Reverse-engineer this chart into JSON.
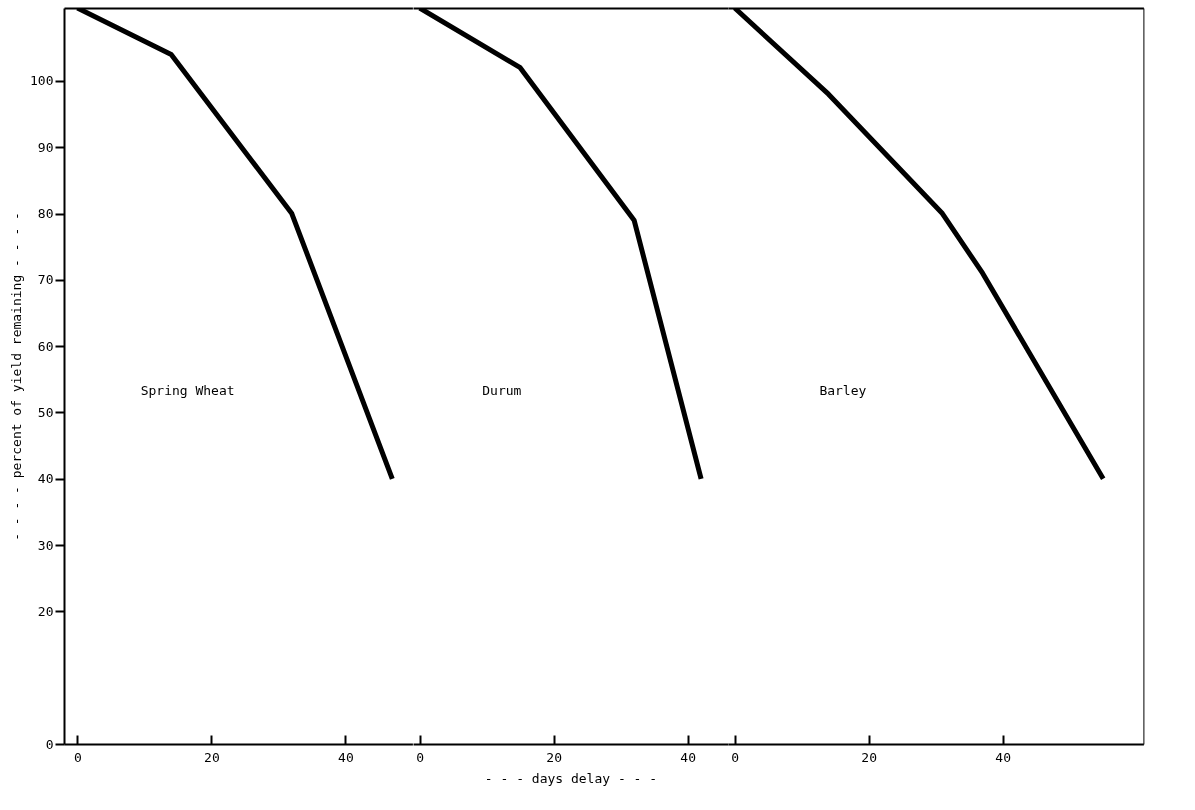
{
  "chart_data": [
    {
      "type": "line",
      "ylabel": "- - - - percent of yield remaining - - - -",
      "xlim": [
        -2,
        50
      ],
      "xticks": [
        0,
        20,
        40
      ],
      "ylim": [
        0,
        111
      ],
      "yticks": [
        0,
        20,
        30,
        40,
        50,
        60,
        70,
        80,
        90,
        100
      ],
      "line_style": "solid",
      "marker": "none",
      "series": [
        {
          "name": "Spring Wheat",
          "color": "#000000",
          "x": [
            0,
            14,
            32,
            47
          ],
          "values": [
            111,
            104,
            80,
            40
          ]
        }
      ]
    },
    {
      "type": "line",
      "xlabel": "- - - days delay - - -",
      "xlim": [
        -1,
        46
      ],
      "xticks": [
        0,
        20,
        40
      ],
      "ylim": [
        0,
        111
      ],
      "tick_labels": "x",
      "line_style": "solid",
      "marker": "none",
      "series": [
        {
          "name": "Durum",
          "color": "#000000",
          "x": [
            0,
            15,
            32,
            42
          ],
          "values": [
            111,
            102,
            79,
            40
          ]
        }
      ]
    },
    {
      "type": "line",
      "xlim": [
        -1,
        61
      ],
      "xticks": [
        0,
        20,
        40
      ],
      "ylim": [
        0,
        111
      ],
      "tick_labels": "x",
      "line_style": "solid",
      "marker": "none",
      "series": [
        {
          "name": "Barley",
          "color": "#000000",
          "x": [
            0,
            14,
            31,
            37,
            55
          ],
          "values": [
            111,
            98,
            80,
            71,
            40
          ]
        }
      ]
    }
  ]
}
